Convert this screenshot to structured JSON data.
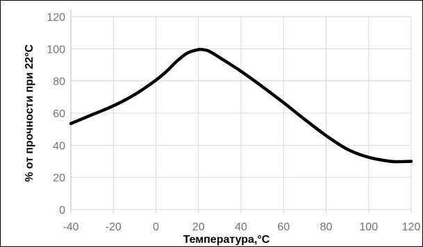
{
  "chart_data": {
    "type": "line",
    "title": "",
    "xlabel": "Температура,°C",
    "ylabel": "% от прочности при 22°С",
    "xlim": [
      -40,
      120
    ],
    "ylim": [
      0,
      120
    ],
    "xticks": [
      -40,
      -20,
      0,
      20,
      40,
      60,
      80,
      100,
      120
    ],
    "yticks": [
      0,
      20,
      40,
      60,
      80,
      100,
      120
    ],
    "grid": true,
    "line_color": "#000000",
    "grid_color": "#d9d9d9",
    "series": [
      {
        "x": [
          -40,
          -30,
          -20,
          -10,
          0,
          5,
          10,
          15,
          20,
          22,
          25,
          30,
          40,
          50,
          60,
          70,
          80,
          90,
          100,
          110,
          115,
          120
        ],
        "values": [
          53.5,
          59,
          64.5,
          71.5,
          80.5,
          86,
          92.5,
          97.5,
          99.5,
          99.5,
          98.5,
          94.5,
          86,
          76.5,
          66.5,
          56,
          46,
          37.5,
          32.5,
          30,
          29.8,
          30
        ]
      }
    ]
  }
}
